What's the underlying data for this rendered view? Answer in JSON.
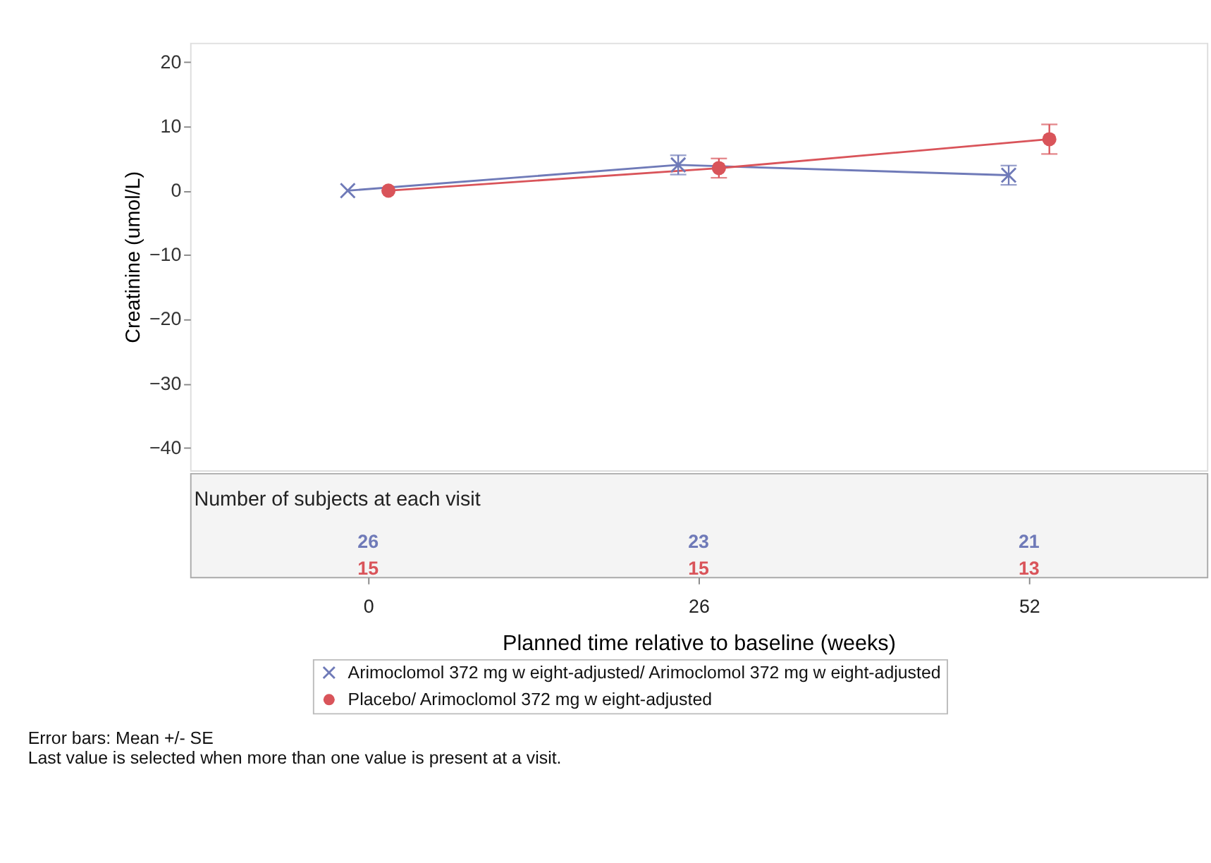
{
  "chart_data": {
    "type": "line",
    "xlabel": "Planned time relative to baseline (weeks)",
    "ylabel": "Creatinine (umol/L)",
    "xlim": [
      -14,
      66
    ],
    "xticks": [
      0,
      26,
      52
    ],
    "ylim": [
      -43.5,
      23
    ],
    "yticks": [
      -40,
      -30,
      -20,
      -10,
      0,
      10,
      20
    ],
    "grid": false,
    "legend": "bottom",
    "series": [
      {
        "name": "Arimoclomol 372 mg w eight-adjusted/ Arimoclomol 372 mg w eight-adjusted",
        "color": "#6f7ab8",
        "marker": "cross",
        "x": [
          -1.6,
          24.4,
          50.4
        ],
        "values": [
          0,
          4,
          2.4
        ],
        "errors": [
          null,
          1.5,
          1.5
        ]
      },
      {
        "name": "Placebo/ Arimoclomol 372 mg w eight-adjusted",
        "color": "#d9545a",
        "marker": "circle",
        "x": [
          1.6,
          27.6,
          53.6
        ],
        "values": [
          0,
          3.5,
          8
        ],
        "errors": [
          null,
          1.5,
          2.3
        ]
      }
    ],
    "annotations": [
      "Number of subjects at each visit",
      "26",
      "23",
      "21",
      "15",
      "15",
      "13",
      "Error bars: Mean +/- SE",
      "Last value is selected when more than one value is present at a visit."
    ]
  }
}
